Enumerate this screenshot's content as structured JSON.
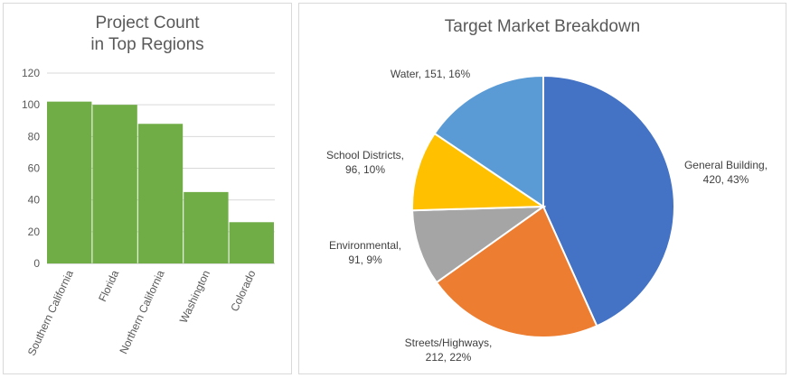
{
  "chart_data": [
    {
      "type": "bar",
      "title_lines": [
        "Project Count",
        "in Top Regions"
      ],
      "categories": [
        "Southern California",
        "Florida",
        "Northern California",
        "Washington",
        "Colorado"
      ],
      "values": [
        102,
        100,
        88,
        45,
        26
      ],
      "ylim": [
        0,
        120
      ],
      "yticks": [
        0,
        20,
        40,
        60,
        80,
        100,
        120
      ],
      "grid": true,
      "color": "#70ad47"
    },
    {
      "type": "pie",
      "title": "Target Market Breakdown",
      "slices": [
        {
          "label_lines": [
            "General Building,",
            "420, 43%"
          ],
          "value": 420,
          "percent": 43,
          "color": "#4472c4"
        },
        {
          "label_lines": [
            "Streets/Highways,",
            "212, 22%"
          ],
          "value": 212,
          "percent": 22,
          "color": "#ed7d31"
        },
        {
          "label_lines": [
            "Environmental,",
            "91, 9%"
          ],
          "value": 91,
          "percent": 9,
          "color": "#a5a5a5"
        },
        {
          "label_lines": [
            "School Districts,",
            "96, 10%"
          ],
          "value": 96,
          "percent": 10,
          "color": "#ffc000"
        },
        {
          "label_lines": [
            "Water, 151, 16%"
          ],
          "value": 151,
          "percent": 16,
          "color": "#5b9bd5"
        }
      ]
    }
  ]
}
